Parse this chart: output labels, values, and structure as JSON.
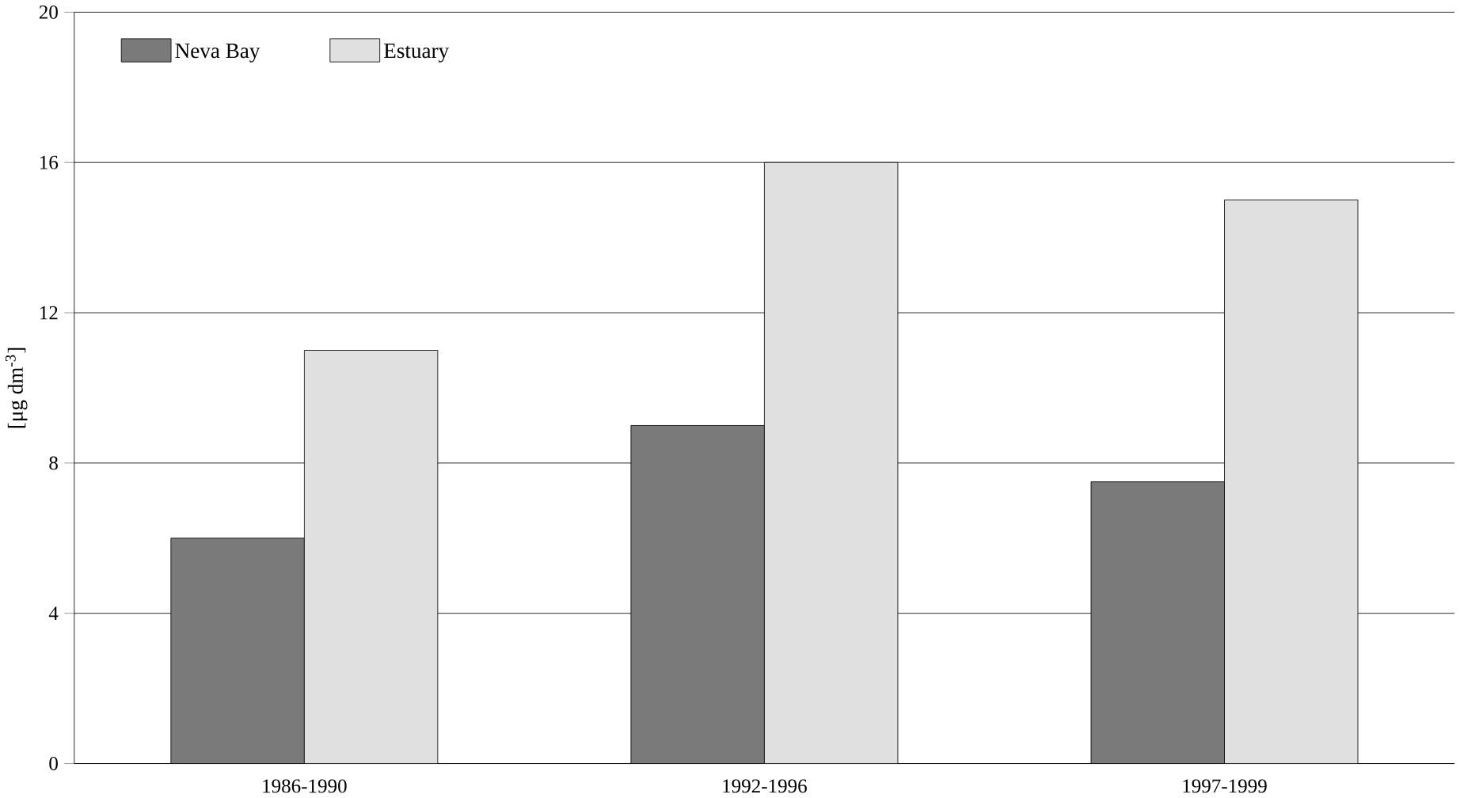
{
  "chart_data": {
    "type": "bar",
    "ylabel": "[μg dm$^{-3}$]",
    "categories": [
      "1986-1990",
      "1992-1996",
      "1997-1999"
    ],
    "series": [
      {
        "name": "Neva Bay",
        "color": "#7a7a7a",
        "values": [
          6,
          9,
          7.5
        ]
      },
      {
        "name": "Estuary",
        "color": "#e0e0e0",
        "values": [
          11,
          16,
          15
        ]
      }
    ],
    "ylim": [
      0,
      20
    ],
    "yticks": [
      0,
      4,
      8,
      12,
      16,
      20
    ],
    "grid": "y",
    "legend": "top left"
  }
}
